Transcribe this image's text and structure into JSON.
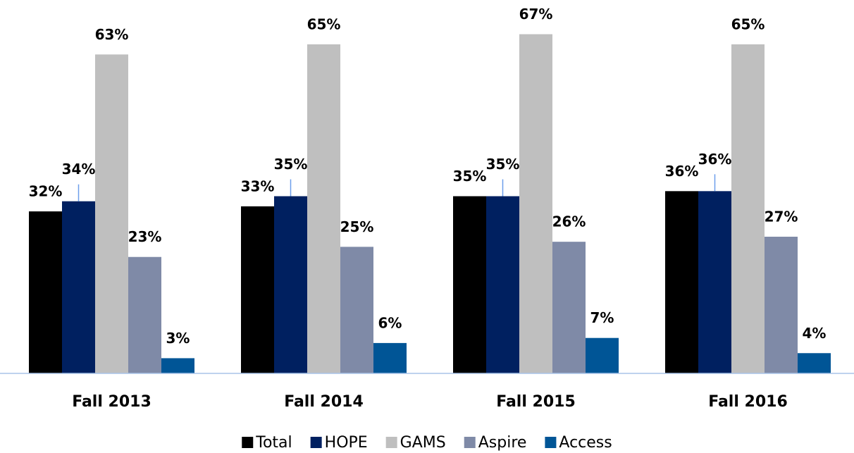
{
  "chart_data": {
    "type": "bar",
    "categories": [
      "Fall 2013",
      "Fall 2014",
      "Fall 2015",
      "Fall 2016"
    ],
    "series": [
      {
        "name": "Total",
        "color": "#000000",
        "values": [
          32,
          33,
          35,
          36
        ],
        "value_labels": [
          "32%",
          "33%",
          "35%",
          "36%"
        ]
      },
      {
        "name": "HOPE",
        "color": "#002060",
        "values": [
          34,
          35,
          35,
          36
        ],
        "value_labels": [
          "34%",
          "35%",
          "35%",
          "36%"
        ]
      },
      {
        "name": "GAMS",
        "color": "#bfbfbf",
        "values": [
          63,
          65,
          67,
          65
        ],
        "value_labels": [
          "63%",
          "65%",
          "67%",
          "65%"
        ]
      },
      {
        "name": "Aspire",
        "color": "#7f8aa7",
        "values": [
          23,
          25,
          26,
          27
        ],
        "value_labels": [
          "23%",
          "25%",
          "26%",
          "27%"
        ]
      },
      {
        "name": "Access",
        "color": "#005596",
        "values": [
          3,
          6,
          7,
          4
        ],
        "value_labels": [
          "3%",
          "6%",
          "7%",
          "4%"
        ]
      }
    ],
    "ylim": [
      0,
      70
    ],
    "legend": "bottom"
  }
}
